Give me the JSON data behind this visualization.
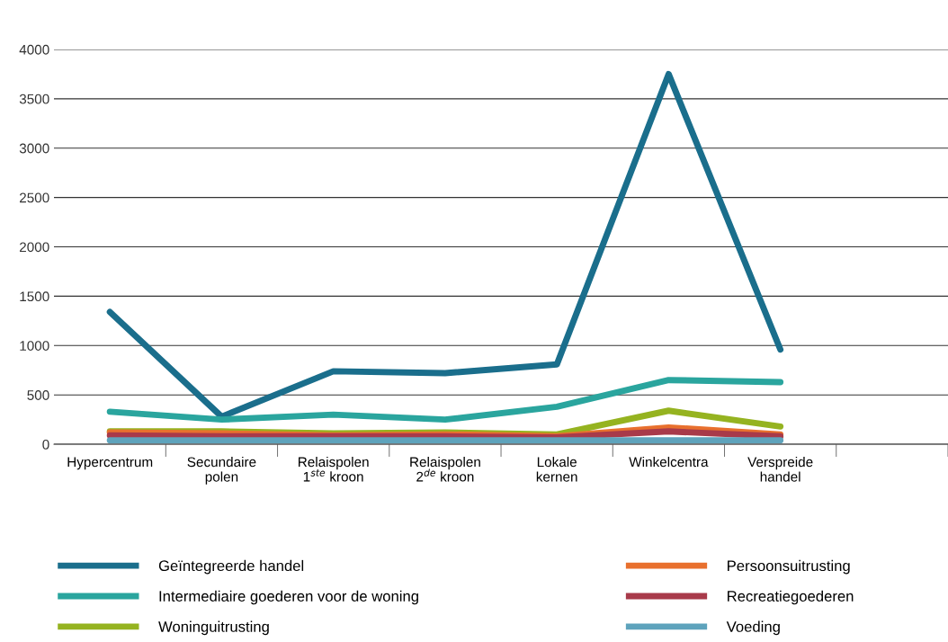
{
  "chart_data": {
    "type": "line",
    "categories": [
      "Hypercentrum",
      "Secundaire\npolen",
      "Relaispolen\n1$^{ste}$ kroon",
      "Relaispolen\n2$^{de}$ kroon",
      "Lokale\nkernen",
      "Winkelcentra",
      "Verspreide\nhandel",
      null
    ],
    "series": [
      {
        "name": "Geïntegreerde handel",
        "color": "#1a6e8c",
        "values": [
          1340,
          280,
          740,
          720,
          810,
          3750,
          960,
          null
        ]
      },
      {
        "name": "Intermediaire goederen voor de woning",
        "color": "#2aa59e",
        "values": [
          330,
          250,
          300,
          250,
          380,
          650,
          630,
          null
        ]
      },
      {
        "name": "Woninguitrusting",
        "color": "#95b320",
        "values": [
          130,
          130,
          110,
          120,
          100,
          340,
          180,
          null
        ]
      },
      {
        "name": "Persoonsuitrusting",
        "color": "#e8702e",
        "values": [
          120,
          110,
          90,
          100,
          80,
          170,
          100,
          null
        ]
      },
      {
        "name": "Recreatiegoederen",
        "color": "#a83a4a",
        "values": [
          90,
          80,
          80,
          80,
          70,
          130,
          80,
          null
        ]
      },
      {
        "name": "Voeding",
        "color": "#5ea3bc",
        "values": [
          40,
          40,
          40,
          40,
          40,
          40,
          40,
          null
        ]
      }
    ],
    "ylim": [
      0,
      4000
    ],
    "yticks": [
      0,
      500,
      1000,
      1500,
      2000,
      2500,
      3000,
      3500,
      4000
    ],
    "grid": "y",
    "legend": "bottom",
    "marker": "none",
    "line_style": "solid"
  }
}
